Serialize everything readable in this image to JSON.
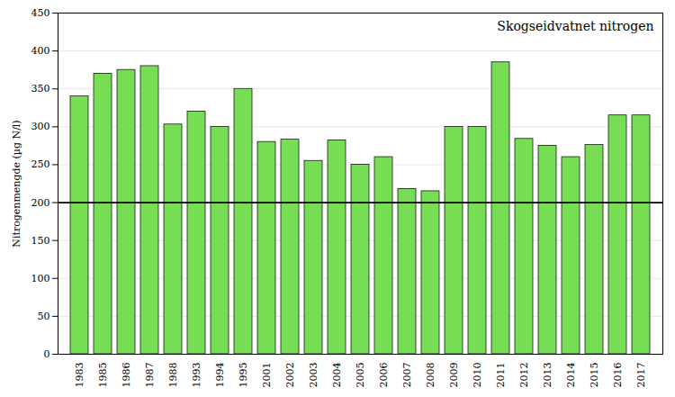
{
  "chart_data": {
    "type": "bar",
    "title": "Skogseidvatnet nitrogen",
    "ylabel": "Nitrogenmengde (µg N/l)",
    "categories": [
      "1983",
      "1985",
      "1986",
      "1987",
      "1988",
      "1993",
      "1994",
      "1995",
      "2001",
      "2002",
      "2003",
      "2004",
      "2005",
      "2006",
      "2007",
      "2008",
      "2009",
      "2010",
      "2011",
      "2012",
      "2013",
      "2014",
      "2015",
      "2016",
      "2017"
    ],
    "values": [
      340,
      370,
      375,
      380,
      303,
      320,
      300,
      350,
      280,
      283,
      255,
      282,
      250,
      260,
      218,
      215,
      300,
      300,
      385,
      284,
      275,
      260,
      276,
      315,
      315
    ],
    "color": "#77dd55",
    "hline": 200,
    "ylim": [
      0,
      450
    ],
    "yticks": [
      0,
      50,
      100,
      150,
      200,
      250,
      300,
      350,
      400,
      450
    ],
    "grid": true
  }
}
